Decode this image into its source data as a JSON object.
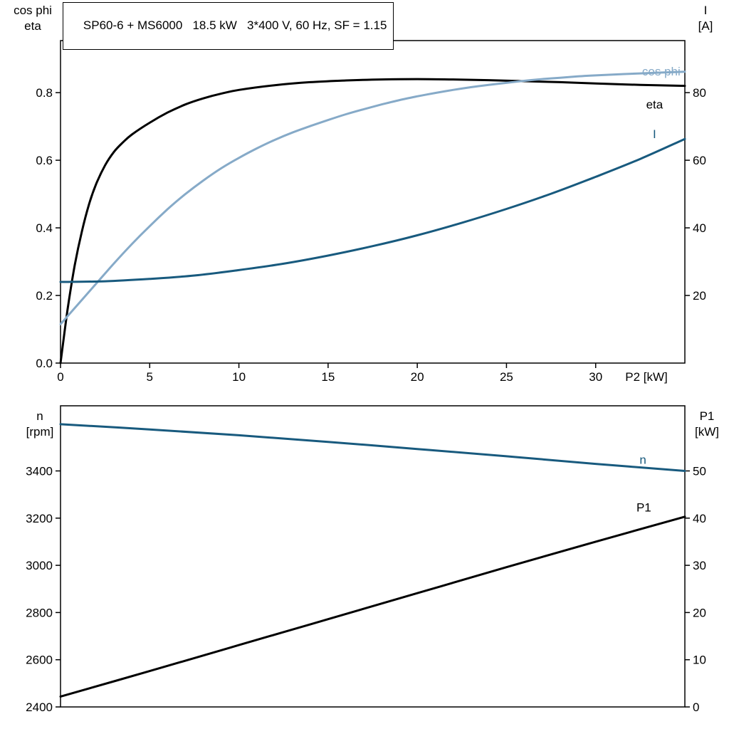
{
  "header": {
    "title": "SP60-6 + MS6000   18.5 kW   3*400 V, 60 Hz, SF = 1.15"
  },
  "colors": {
    "black": "#000000",
    "dark_blue": "#185a7e",
    "light_blue": "#86aac8",
    "frame": "#000000"
  },
  "chart_data": [
    {
      "type": "line",
      "title": "SP60-6 + MS6000   18.5 kW   3*400 V, 60 Hz, SF = 1.15",
      "x": {
        "label": "P2 [kW]",
        "lim": [
          0,
          35
        ],
        "tick_values": [
          0,
          5,
          10,
          15,
          20,
          25,
          30
        ],
        "ticks": [
          "0",
          "5",
          "10",
          "15",
          "20",
          "25",
          "30"
        ]
      },
      "left": {
        "title_lines": [
          "cos phi",
          "eta"
        ],
        "lim": [
          0,
          0.954
        ],
        "tick_values": [
          0.0,
          0.2,
          0.4,
          0.6,
          0.8
        ],
        "ticks": [
          "0.0",
          "0.2",
          "0.4",
          "0.6",
          "0.8"
        ]
      },
      "right": {
        "title_lines": [
          "I",
          "[A]"
        ],
        "lim": [
          0,
          95.4
        ],
        "tick_values": [
          20,
          40,
          60,
          80
        ],
        "ticks": [
          "20",
          "40",
          "60",
          "80"
        ]
      },
      "series": [
        {
          "name": "eta",
          "axis": "left",
          "color": "#000000",
          "label": {
            "text": "eta",
            "x": 33.3,
            "y": 0.766,
            "anchor": "middle"
          },
          "points": [
            [
              0,
              0
            ],
            [
              0.4,
              0.16
            ],
            [
              0.8,
              0.29
            ],
            [
              1.2,
              0.39
            ],
            [
              1.6,
              0.47
            ],
            [
              2,
              0.53
            ],
            [
              2.5,
              0.585
            ],
            [
              3,
              0.625
            ],
            [
              3.5,
              0.653
            ],
            [
              4,
              0.676
            ],
            [
              5,
              0.711
            ],
            [
              6,
              0.741
            ],
            [
              7,
              0.765
            ],
            [
              8,
              0.783
            ],
            [
              9,
              0.797
            ],
            [
              10,
              0.808
            ],
            [
              12,
              0.822
            ],
            [
              14,
              0.831
            ],
            [
              16,
              0.836
            ],
            [
              18,
              0.839
            ],
            [
              20,
              0.84
            ],
            [
              22,
              0.839
            ],
            [
              24,
              0.837
            ],
            [
              26,
              0.834
            ],
            [
              28,
              0.831
            ],
            [
              30,
              0.827
            ],
            [
              32.5,
              0.823
            ],
            [
              35,
              0.82
            ]
          ]
        },
        {
          "name": "cos phi",
          "axis": "left",
          "color": "#86aac8",
          "label": {
            "text": "cos phi",
            "x": 34.75,
            "y": 0.863,
            "anchor": "end"
          },
          "points": [
            [
              0,
              0.115
            ],
            [
              1,
              0.175
            ],
            [
              2,
              0.235
            ],
            [
              3,
              0.295
            ],
            [
              4,
              0.352
            ],
            [
              5,
              0.405
            ],
            [
              6,
              0.455
            ],
            [
              7,
              0.5
            ],
            [
              8,
              0.54
            ],
            [
              9,
              0.576
            ],
            [
              10,
              0.607
            ],
            [
              11,
              0.635
            ],
            [
              12,
              0.66
            ],
            [
              13,
              0.682
            ],
            [
              14,
              0.701
            ],
            [
              15,
              0.719
            ],
            [
              16,
              0.736
            ],
            [
              17,
              0.751
            ],
            [
              18,
              0.765
            ],
            [
              19,
              0.778
            ],
            [
              20,
              0.789
            ],
            [
              21,
              0.799
            ],
            [
              22,
              0.808
            ],
            [
              23,
              0.816
            ],
            [
              24,
              0.823
            ],
            [
              25,
              0.829
            ],
            [
              26,
              0.835
            ],
            [
              27,
              0.84
            ],
            [
              28,
              0.844
            ],
            [
              29,
              0.848
            ],
            [
              30,
              0.851
            ],
            [
              32.5,
              0.857
            ],
            [
              35,
              0.862
            ]
          ]
        },
        {
          "name": "I",
          "axis": "right",
          "color": "#185a7e",
          "label": {
            "text": "I",
            "x": 33.3,
            "y": 67.8,
            "anchor": "middle"
          },
          "points": [
            [
              0,
              24.0
            ],
            [
              2.5,
              24.2
            ],
            [
              5,
              24.9
            ],
            [
              7.5,
              25.9
            ],
            [
              10,
              27.5
            ],
            [
              12.5,
              29.4
            ],
            [
              15,
              31.8
            ],
            [
              17.5,
              34.6
            ],
            [
              20,
              37.8
            ],
            [
              22.5,
              41.5
            ],
            [
              25,
              45.6
            ],
            [
              27.5,
              50.1
            ],
            [
              30,
              55.1
            ],
            [
              32.5,
              60.4
            ],
            [
              35,
              66.3
            ]
          ]
        }
      ]
    },
    {
      "type": "line",
      "title": "",
      "x": {
        "label": "",
        "lim": [
          0,
          35
        ],
        "tick_values": [],
        "ticks": []
      },
      "left": {
        "title_lines": [
          "n",
          "[rpm]"
        ],
        "lim": [
          2400,
          3676
        ],
        "tick_values": [
          2400,
          2600,
          2800,
          3000,
          3200,
          3400
        ],
        "ticks": [
          "2400",
          "2600",
          "2800",
          "3000",
          "3200",
          "3400"
        ]
      },
      "right": {
        "title_lines": [
          "P1",
          "[kW]"
        ],
        "lim": [
          0,
          63.8
        ],
        "tick_values": [
          0,
          10,
          20,
          30,
          40,
          50
        ],
        "ticks": [
          "0",
          "10",
          "20",
          "30",
          "40",
          "50"
        ]
      },
      "series": [
        {
          "name": "n",
          "axis": "left",
          "color": "#185a7e",
          "label": {
            "text": "n",
            "x": 32.65,
            "y": 3449,
            "anchor": "middle"
          },
          "points": [
            [
              0,
              3598
            ],
            [
              5,
              3576
            ],
            [
              10,
              3551
            ],
            [
              15,
              3523
            ],
            [
              20,
              3493
            ],
            [
              25,
              3462
            ],
            [
              30,
              3430
            ],
            [
              35,
              3400
            ]
          ]
        },
        {
          "name": "P1",
          "axis": "right",
          "color": "#000000",
          "label": {
            "text": "P1",
            "x": 32.7,
            "y": 42.3,
            "anchor": "middle"
          },
          "points": [
            [
              0,
              2.2
            ],
            [
              5,
              7.6
            ],
            [
              10,
              13.1
            ],
            [
              15,
              18.6
            ],
            [
              20,
              24.1
            ],
            [
              25,
              29.6
            ],
            [
              30,
              35.0
            ],
            [
              35,
              40.3
            ]
          ]
        }
      ]
    }
  ]
}
